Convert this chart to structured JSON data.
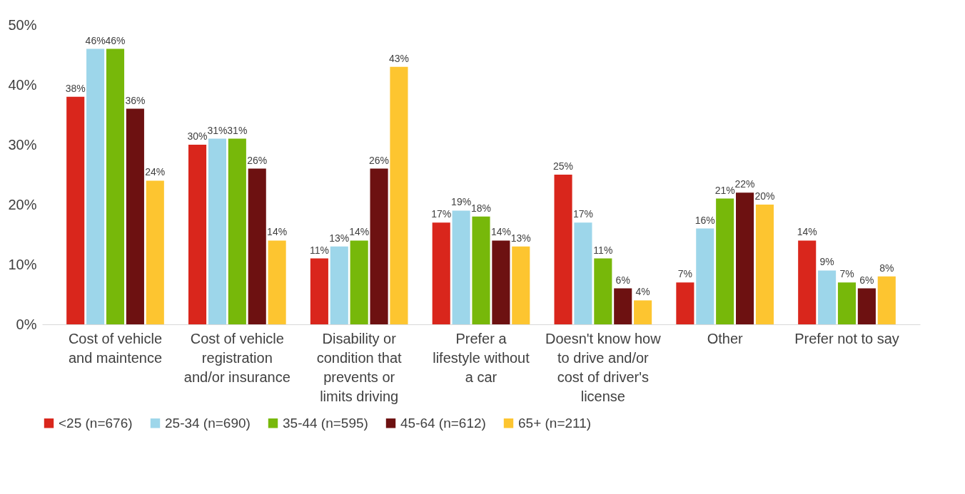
{
  "chart_data": {
    "type": "bar",
    "categories": [
      "Cost of vehicle and maintence",
      "Cost of vehicle registration and/or insurance",
      "Disability or condition that prevents or limits driving",
      "Prefer a lifestyle without a car",
      "Doesn't know how to drive and/or cost of driver's license",
      "Other",
      "Prefer not to say"
    ],
    "series": [
      {
        "name": "<25 (n=676)",
        "color": "#d9261c",
        "values": [
          38,
          30,
          11,
          17,
          25,
          7,
          14
        ],
        "value_labels": [
          "38%",
          "30%",
          "11%",
          "17%",
          "25%",
          "7%",
          "14%"
        ]
      },
      {
        "name": "25-34 (n=690)",
        "color": "#9dd6ea",
        "values": [
          46,
          31,
          13,
          19,
          17,
          16,
          9
        ],
        "value_labels": [
          "46%",
          "31%",
          "13%",
          "19%",
          "17%",
          "16%",
          "9%"
        ]
      },
      {
        "name": "35-44 (n=595)",
        "color": "#77b80a",
        "values": [
          46,
          31,
          14,
          18,
          11,
          21,
          7
        ],
        "value_labels": [
          "46%",
          "31%",
          "14%",
          "18%",
          "11%",
          "21%",
          "7%"
        ]
      },
      {
        "name": "45-64 (n=612)",
        "color": "#6d1111",
        "values": [
          36,
          26,
          26,
          14,
          6,
          22,
          6
        ],
        "value_labels": [
          "36%",
          "26%",
          "26%",
          "14%",
          "6%",
          "22%",
          "6%"
        ]
      },
      {
        "name": "65+ (n=211)",
        "color": "#fdc530",
        "values": [
          24,
          14,
          43,
          13,
          4,
          20,
          8
        ],
        "value_labels": [
          "24%",
          "14%",
          "43%",
          "13%",
          "4%",
          "20%",
          "8%"
        ]
      }
    ],
    "ylim": [
      0,
      50
    ],
    "yticks": [
      {
        "value": 0,
        "label": "0%"
      },
      {
        "value": 10,
        "label": "10%"
      },
      {
        "value": 20,
        "label": "20%"
      },
      {
        "value": 30,
        "label": "30%"
      },
      {
        "value": 40,
        "label": "40%"
      },
      {
        "value": 50,
        "label": "50%"
      }
    ],
    "grid": false,
    "legend": "bottom"
  }
}
